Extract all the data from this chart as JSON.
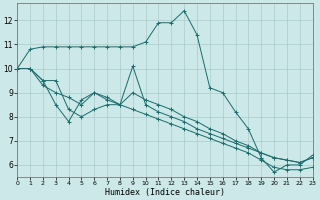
{
  "xlabel": "Humidex (Indice chaleur)",
  "background_color": "#cce8e8",
  "grid_color": "#aacccc",
  "line_color": "#1a6b6b",
  "xlim": [
    0,
    23
  ],
  "ylim": [
    5.5,
    12.7
  ],
  "yticks": [
    6,
    7,
    8,
    9,
    10,
    11,
    12
  ],
  "xticks": [
    0,
    1,
    2,
    3,
    4,
    5,
    6,
    7,
    8,
    9,
    10,
    11,
    12,
    13,
    14,
    15,
    16,
    17,
    18,
    19,
    20,
    21,
    22,
    23
  ],
  "curves": [
    {
      "x": [
        0,
        1,
        2,
        3,
        4,
        5,
        6,
        7,
        8,
        9,
        10,
        11,
        12,
        13,
        14,
        15,
        16,
        17,
        18,
        19,
        20,
        21,
        22,
        23
      ],
      "y": [
        10.0,
        10.8,
        10.9,
        10.9,
        10.9,
        10.9,
        10.9,
        10.9,
        10.9,
        10.9,
        11.1,
        11.9,
        11.9,
        12.4,
        11.4,
        9.2,
        9.0,
        8.2,
        7.5,
        6.3,
        5.7,
        6.0,
        6.0,
        6.4
      ]
    },
    {
      "x": [
        0,
        1,
        2,
        3,
        4,
        5,
        6,
        7,
        8,
        9,
        10,
        11,
        12,
        13,
        14,
        15,
        16,
        17,
        18,
        19,
        20,
        21,
        22,
        23
      ],
      "y": [
        10.0,
        10.0,
        9.5,
        8.5,
        7.8,
        8.7,
        9.0,
        8.8,
        8.5,
        9.0,
        8.7,
        8.5,
        8.3,
        8.0,
        7.8,
        7.5,
        7.3,
        7.0,
        6.8,
        6.5,
        6.3,
        6.2,
        6.1,
        6.3
      ]
    },
    {
      "x": [
        0,
        1,
        2,
        3,
        4,
        5,
        6,
        7,
        8,
        9,
        10,
        11,
        12,
        13,
        14,
        15,
        16,
        17,
        18,
        19,
        20,
        21,
        22,
        23
      ],
      "y": [
        10.0,
        10.0,
        9.3,
        9.0,
        8.8,
        8.5,
        9.0,
        8.7,
        8.5,
        8.3,
        8.1,
        7.9,
        7.7,
        7.5,
        7.3,
        7.1,
        6.9,
        6.7,
        6.5,
        6.2,
        5.9,
        5.8,
        5.8,
        5.9
      ]
    },
    {
      "x": [
        0,
        1,
        2,
        3,
        4,
        5,
        6,
        7,
        8,
        9,
        10,
        11,
        12,
        13,
        14,
        15,
        16,
        17,
        18,
        19,
        20,
        21,
        22,
        23
      ],
      "y": [
        10.0,
        10.0,
        9.5,
        9.5,
        8.3,
        8.0,
        8.3,
        8.5,
        8.5,
        10.1,
        8.5,
        8.2,
        8.0,
        7.8,
        7.5,
        7.3,
        7.1,
        6.9,
        6.7,
        6.5,
        6.3,
        6.2,
        6.1,
        6.3
      ]
    }
  ]
}
